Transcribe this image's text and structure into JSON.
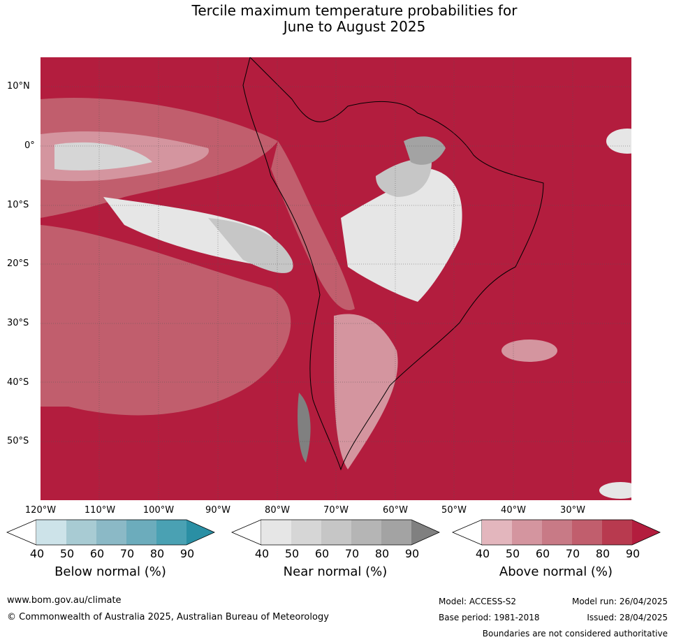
{
  "title_line1": "Tercile maximum temperature probabilities for",
  "title_line2": "June to August 2025",
  "lat_labels": [
    "10°N",
    "0°",
    "10°S",
    "20°S",
    "30°S",
    "40°S",
    "50°S"
  ],
  "lon_labels": [
    "120°W",
    "110°W",
    "100°W",
    "90°W",
    "80°W",
    "70°W",
    "60°W",
    "50°W",
    "40°W",
    "30°W"
  ],
  "legend": {
    "ticks": [
      "40",
      "50",
      "60",
      "70",
      "80",
      "90"
    ],
    "below": {
      "title": "Below normal (%)",
      "colors": [
        "#ffffff",
        "#cde3e9",
        "#a8cbd3",
        "#8bb9c6",
        "#6cacbc",
        "#4aa1b3",
        "#2a8fa4"
      ]
    },
    "near": {
      "title": "Near normal (%)",
      "colors": [
        "#ffffff",
        "#e6e6e6",
        "#d6d6d6",
        "#c6c6c6",
        "#b5b5b5",
        "#a3a3a3",
        "#808080"
      ]
    },
    "above": {
      "title": "Above normal (%)",
      "colors": [
        "#ffffff",
        "#e3b6bd",
        "#d4959f",
        "#c87a86",
        "#c15e6d",
        "#b83a4f",
        "#b31d3e"
      ]
    }
  },
  "footer": {
    "website": "www.bom.gov.au/climate",
    "copyright": "© Commonwealth of Australia 2025, Australian Bureau of Meteorology",
    "model": "Model: ACCESS-S2",
    "base_period": "Base period: 1981-2018",
    "model_run": "Model run: 26/04/2025",
    "issued": "Issued: 28/04/2025",
    "disclaimer": "Boundaries are not considered authoritative"
  }
}
